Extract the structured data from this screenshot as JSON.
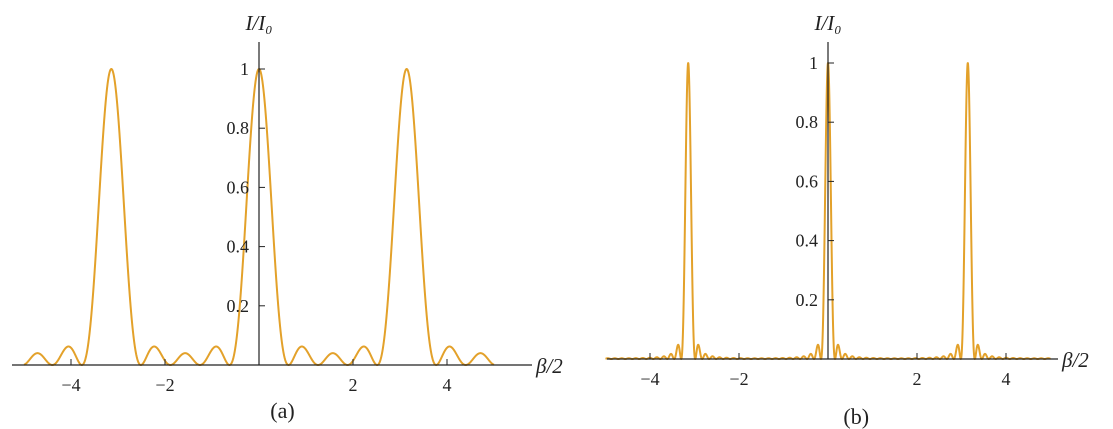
{
  "chart_data": [
    {
      "type": "line",
      "panel_label": "(a)",
      "ylabel": "I/I₀",
      "xlabel": "β/2",
      "xlim": [
        -5.3,
        5.8
      ],
      "ylim": [
        0,
        1.06
      ],
      "x_ticks": [
        -4,
        -2,
        2,
        4
      ],
      "x_tick_labels": [
        "−4",
        "−2",
        "2",
        "4"
      ],
      "y_ticks": [
        0.2,
        0.4,
        0.6,
        0.8,
        1
      ],
      "y_tick_labels": [
        "0.2",
        "0.4",
        "0.6",
        "0.8",
        "1"
      ],
      "curve": {
        "function": "grating",
        "N": 5,
        "x_range": [
          -5,
          5
        ],
        "peaks_at": [
          -3.1416,
          0,
          3.1416
        ]
      },
      "series_color": "#e3a12a",
      "grid": false
    },
    {
      "type": "line",
      "panel_label": "(b)",
      "ylabel": "I/I₀",
      "xlabel": "β/2",
      "xlim": [
        -5.3,
        5.8
      ],
      "ylim": [
        0,
        1.06
      ],
      "x_ticks": [
        -4,
        -2,
        2,
        4
      ],
      "x_tick_labels": [
        "−4",
        "−2",
        "2",
        "4"
      ],
      "y_ticks": [
        0.2,
        0.4,
        0.6,
        0.8,
        1
      ],
      "y_tick_labels": [
        "0.2",
        "0.4",
        "0.6",
        "0.8",
        "1"
      ],
      "curve": {
        "function": "grating",
        "N": 20,
        "x_range": [
          -5,
          5
        ],
        "peaks_at": [
          -3.1416,
          0,
          3.1416
        ]
      },
      "series_color": "#e3a12a",
      "grid": false
    }
  ]
}
